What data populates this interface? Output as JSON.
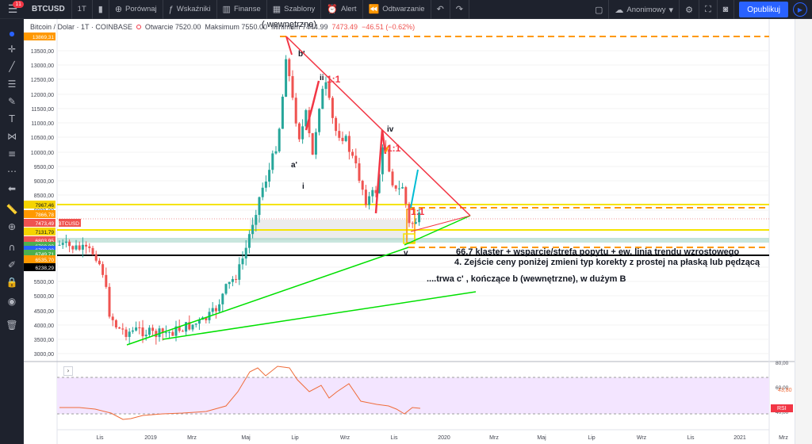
{
  "toolbar": {
    "badge": "11",
    "symbol": "BTCUSD",
    "timeframe": "1T",
    "compare_label": "Porównaj",
    "indicators_label": "Wskaźniki",
    "finance_label": "Finanse",
    "templates_label": "Szablony",
    "alert_label": "Alert",
    "replay_label": "Odtwarzanie",
    "user_label": "Anonimowy",
    "publish_label": "Opublikuj"
  },
  "legend": {
    "title": "Bitcoin / Dolar · 1T · COINBASE",
    "open": "Otwarcie 7520.00",
    "high": "Maksimum 7550.00",
    "low": "Minimum 7444.99",
    "close": "7473.49",
    "change": "−46.51 (−0.62%)"
  },
  "annotations": {
    "overlay_text": "( wewnętrzne)",
    "text1": "66,7 klaster + wsparcie/strefa popytu + ew. linia trendu wzrostowego",
    "text2": "4. Zejście ceny poniżej zmieni typ korekty z prostej na płaską lub pędzącą",
    "text3": "....trwa c' , kończące b (wewnętrzne), w dużym B",
    "wave_b": "b'",
    "wave_ii": "ii",
    "wave_a": "a'",
    "wave_i": "i",
    "wave_iv": "iv",
    "wave_v": "v",
    "ratio1": "1:1",
    "ratio2": "1:1",
    "ratio3": "1:1"
  },
  "price_axis": [
    "13500,00",
    "13000,00",
    "12500,00",
    "12000,00",
    "11500,00",
    "11000,00",
    "10500,00",
    "10000,00",
    "9500,00",
    "9000,00",
    "8500,00",
    "8000,00",
    "7000,00",
    "6000,00",
    "5500,00",
    "5000,00",
    "4500,00",
    "4000,00",
    "3500,00",
    "3000,00"
  ],
  "price_labels": [
    {
      "text": "13869,31",
      "color": "#ff9800"
    },
    {
      "text": "7967,46",
      "color": "#f5d400"
    },
    {
      "text": "7866,78",
      "color": "#ff9800"
    },
    {
      "text": "7473,49",
      "color": "#ef5350"
    },
    {
      "text": "BTCUSD",
      "color": "#ef5350"
    },
    {
      "text": "7131,79",
      "color": "#f5d400"
    },
    {
      "text": "6803,95",
      "color": "#ef5350"
    },
    {
      "text": "6769,09",
      "color": "#4caf50"
    },
    {
      "text": "6700,29",
      "color": "#2962ff"
    },
    {
      "text": "6749,71",
      "color": "#4caf50"
    },
    {
      "text": "6535,70",
      "color": "#ff9800"
    },
    {
      "text": "6238,29",
      "color": "#000000"
    }
  ],
  "rsi": {
    "label": "RSI",
    "value": "43,80",
    "axis": [
      "80,00",
      "60,00",
      "40,00"
    ]
  },
  "time_axis": [
    "Lis",
    "2019",
    "Mrz",
    "Maj",
    "Lip",
    "Wrz",
    "Lis",
    "2020",
    "Mrz",
    "Maj",
    "Lip",
    "Wrz",
    "Lis",
    "2021",
    "Mrz"
  ],
  "colors": {
    "up": "#26a69a",
    "down": "#ef5350",
    "trend_red": "#f23645",
    "trend_green": "#00e000",
    "level_yellow": "#f5e400",
    "level_orange": "#ff9800",
    "rsi_line": "#ef6c3a",
    "rsi_band": "#f3e5ff"
  }
}
